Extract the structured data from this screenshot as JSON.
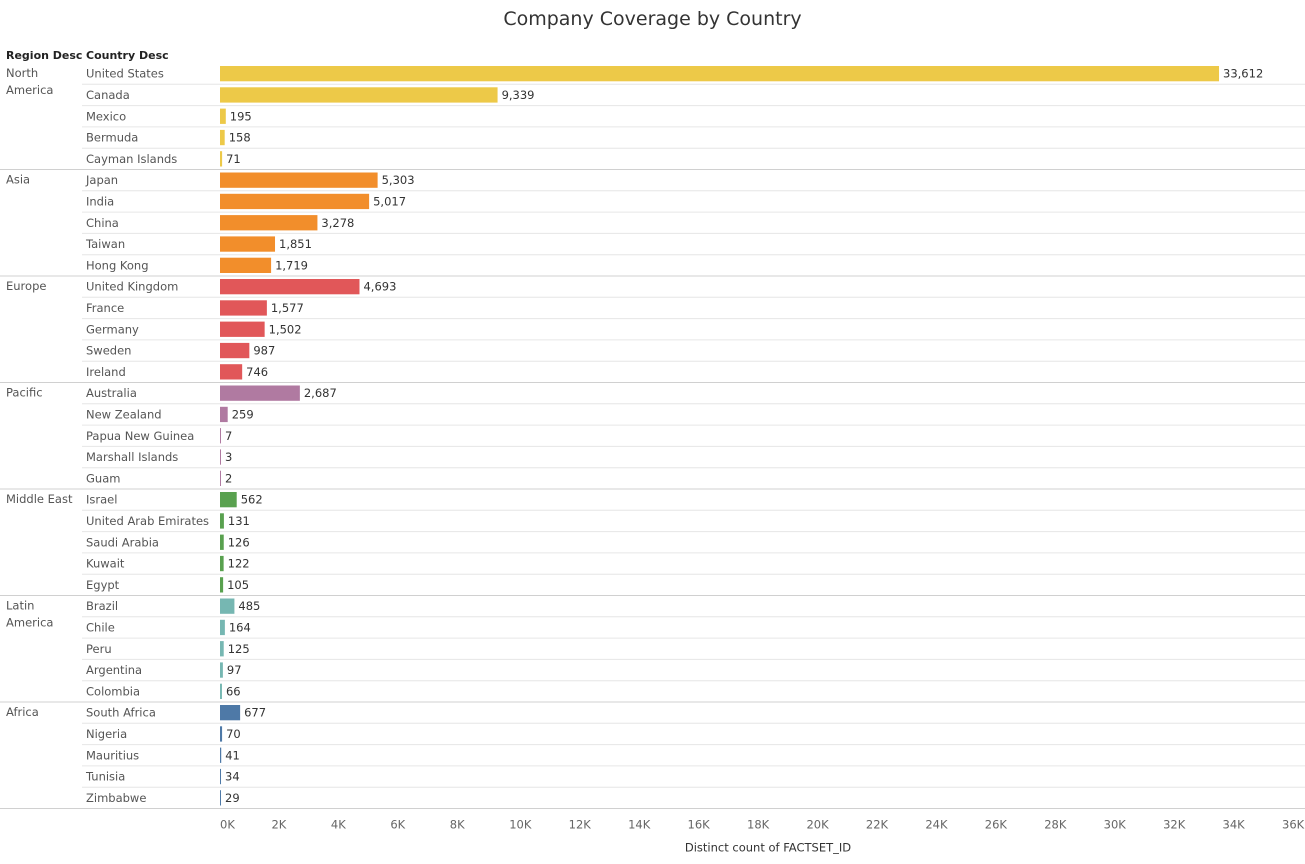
{
  "chart_data": {
    "type": "bar",
    "title": "Company Coverage by Country",
    "row_headers": [
      "Region Desc",
      "Country Desc"
    ],
    "xlabel": "Distinct count of FACTSET_ID",
    "xlim": [
      0,
      36000
    ],
    "x_ticks": [
      "0K",
      "2K",
      "4K",
      "6K",
      "8K",
      "10K",
      "12K",
      "14K",
      "16K",
      "18K",
      "20K",
      "22K",
      "24K",
      "26K",
      "28K",
      "30K",
      "32K",
      "34K",
      "36K"
    ],
    "groups": [
      {
        "region": "North America",
        "color": "#edc948",
        "rows": [
          {
            "country": "United States",
            "value": 33612,
            "label": "33,612"
          },
          {
            "country": "Canada",
            "value": 9339,
            "label": "9,339"
          },
          {
            "country": "Mexico",
            "value": 195,
            "label": "195"
          },
          {
            "country": "Bermuda",
            "value": 158,
            "label": "158"
          },
          {
            "country": "Cayman Islands",
            "value": 71,
            "label": "71"
          }
        ]
      },
      {
        "region": "Asia",
        "color": "#f28e2b",
        "rows": [
          {
            "country": "Japan",
            "value": 5303,
            "label": "5,303"
          },
          {
            "country": "India",
            "value": 5017,
            "label": "5,017"
          },
          {
            "country": "China",
            "value": 3278,
            "label": "3,278"
          },
          {
            "country": "Taiwan",
            "value": 1851,
            "label": "1,851"
          },
          {
            "country": "Hong Kong",
            "value": 1719,
            "label": "1,719"
          }
        ]
      },
      {
        "region": "Europe",
        "color": "#e15759",
        "rows": [
          {
            "country": "United Kingdom",
            "value": 4693,
            "label": "4,693"
          },
          {
            "country": "France",
            "value": 1577,
            "label": "1,577"
          },
          {
            "country": "Germany",
            "value": 1502,
            "label": "1,502"
          },
          {
            "country": "Sweden",
            "value": 987,
            "label": "987"
          },
          {
            "country": "Ireland",
            "value": 746,
            "label": "746"
          }
        ]
      },
      {
        "region": "Pacific",
        "color": "#b07aa1",
        "rows": [
          {
            "country": "Australia",
            "value": 2687,
            "label": "2,687"
          },
          {
            "country": "New Zealand",
            "value": 259,
            "label": "259"
          },
          {
            "country": "Papua New Guinea",
            "value": 7,
            "label": "7"
          },
          {
            "country": "Marshall Islands",
            "value": 3,
            "label": "3"
          },
          {
            "country": "Guam",
            "value": 2,
            "label": "2"
          }
        ]
      },
      {
        "region": "Middle East",
        "color": "#59a14f",
        "rows": [
          {
            "country": "Israel",
            "value": 562,
            "label": "562"
          },
          {
            "country": "United Arab Emirates",
            "value": 131,
            "label": "131"
          },
          {
            "country": "Saudi Arabia",
            "value": 126,
            "label": "126"
          },
          {
            "country": "Kuwait",
            "value": 122,
            "label": "122"
          },
          {
            "country": "Egypt",
            "value": 105,
            "label": "105"
          }
        ]
      },
      {
        "region": "Latin America",
        "color": "#76b7b2",
        "rows": [
          {
            "country": "Brazil",
            "value": 485,
            "label": "485"
          },
          {
            "country": "Chile",
            "value": 164,
            "label": "164"
          },
          {
            "country": "Peru",
            "value": 125,
            "label": "125"
          },
          {
            "country": "Argentina",
            "value": 97,
            "label": "97"
          },
          {
            "country": "Colombia",
            "value": 66,
            "label": "66"
          }
        ]
      },
      {
        "region": "Africa",
        "color": "#4e79a7",
        "rows": [
          {
            "country": "South Africa",
            "value": 677,
            "label": "677"
          },
          {
            "country": "Nigeria",
            "value": 70,
            "label": "70"
          },
          {
            "country": "Mauritius",
            "value": 41,
            "label": "41"
          },
          {
            "country": "Tunisia",
            "value": 34,
            "label": "34"
          },
          {
            "country": "Zimbabwe",
            "value": 29,
            "label": "29"
          }
        ]
      }
    ]
  }
}
